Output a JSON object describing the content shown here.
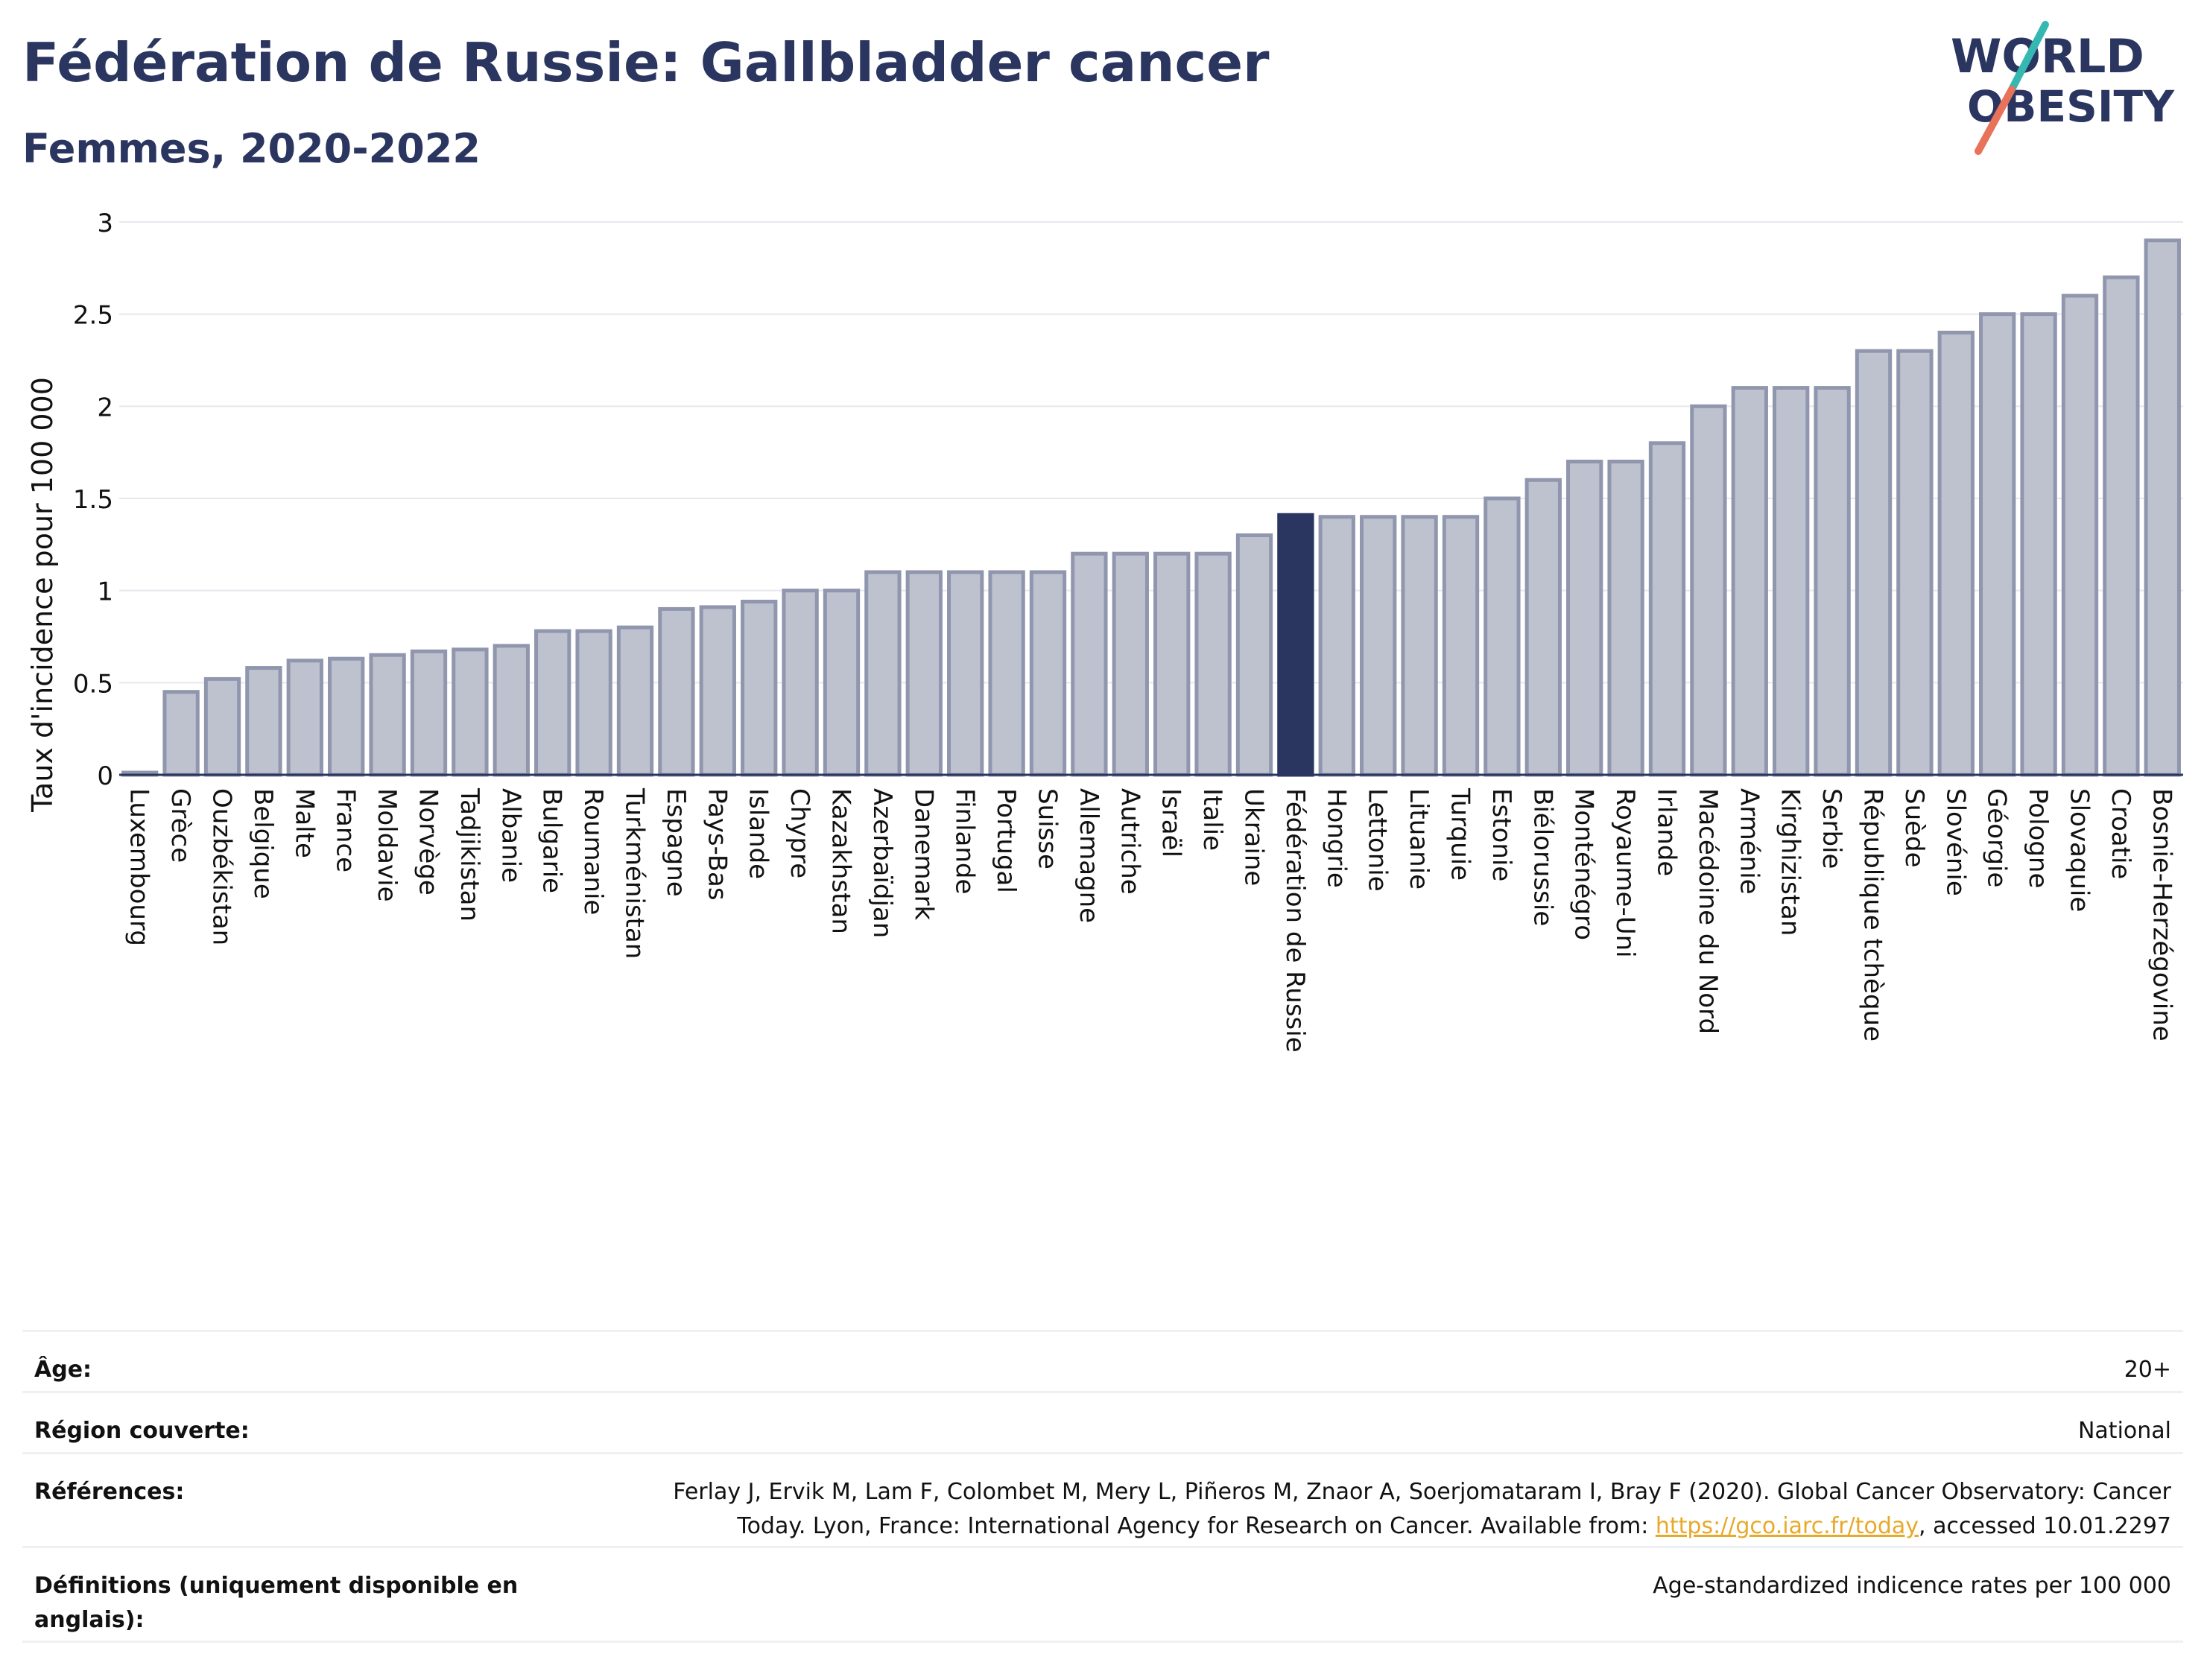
{
  "header": {
    "title": "Fédération de Russie: Gallbladder cancer",
    "subtitle": "Femmes, 2020-2022"
  },
  "logo": {
    "line1": "WORLD",
    "line2": "OBESITY",
    "slash_colors": [
      "#35b8b2",
      "#e8735a"
    ],
    "text_color": "#2a3560"
  },
  "colors": {
    "bar": "#bec2cf",
    "bar_outline": "#9096ad",
    "highlight": "#2a3560",
    "grid": "#e6e8ee",
    "baseline": "#2a3560"
  },
  "chart_data": {
    "type": "bar",
    "ylabel": "Taux d'incidence pour 100 000",
    "ylim": [
      0,
      3
    ],
    "yticks": [
      {
        "value": 0,
        "label": "0"
      },
      {
        "value": 0.5,
        "label": "0.5"
      },
      {
        "value": 1,
        "label": "1"
      },
      {
        "value": 1.5,
        "label": "1.5"
      },
      {
        "value": 2,
        "label": "2"
      },
      {
        "value": 2.5,
        "label": "2.5"
      },
      {
        "value": 3,
        "label": "3"
      }
    ],
    "grid": true,
    "highlight": "Fédération de Russie",
    "categories": [
      "Luxembourg",
      "Grèce",
      "Ouzbékistan",
      "Belgique",
      "Malte",
      "France",
      "Moldavie",
      "Norvège",
      "Tadjikistan",
      "Albanie",
      "Bulgarie",
      "Roumanie",
      "Turkménistan",
      "Espagne",
      "Pays-Bas",
      "Islande",
      "Chypre",
      "Kazakhstan",
      "Azerbaïdjan",
      "Danemark",
      "Finlande",
      "Portugal",
      "Suisse",
      "Allemagne",
      "Autriche",
      "Israël",
      "Italie",
      "Ukraine",
      "Fédération de Russie",
      "Hongrie",
      "Lettonie",
      "Lituanie",
      "Turquie",
      "Estonie",
      "Biélorussie",
      "Monténégro",
      "Royaume-Uni",
      "Irlande",
      "Macédoine du Nord",
      "Arménie",
      "Kirghizistan",
      "Serbie",
      "République tchèque",
      "Suède",
      "Slovénie",
      "Géorgie",
      "Pologne",
      "Slovaquie",
      "Croatie",
      "Bosnie-Herzégovine"
    ],
    "values": [
      0.01,
      0.45,
      0.52,
      0.58,
      0.62,
      0.63,
      0.65,
      0.67,
      0.68,
      0.7,
      0.78,
      0.78,
      0.8,
      0.9,
      0.91,
      0.94,
      1.0,
      1.0,
      1.1,
      1.1,
      1.1,
      1.1,
      1.1,
      1.2,
      1.2,
      1.2,
      1.2,
      1.3,
      1.41,
      1.4,
      1.4,
      1.4,
      1.4,
      1.5,
      1.6,
      1.7,
      1.7,
      1.8,
      2.0,
      2.1,
      2.1,
      2.1,
      2.3,
      2.3,
      2.4,
      2.5,
      2.5,
      2.6,
      2.7,
      2.9
    ]
  },
  "info": {
    "age_label": "Âge:",
    "age_value": "20+",
    "region_label": "Région couverte:",
    "region_value": "National",
    "references_label": "Références:",
    "references_text": "Ferlay J, Ervik M, Lam F, Colombet M, Mery L, Piñeros M, Znaor A, Soerjomataram I, Bray F (2020). Global Cancer Observatory: Cancer Today. Lyon, France: International Agency for Research on Cancer. Available from: ",
    "references_link": "https://gco.iarc.fr/today",
    "references_tail": ", accessed 10.01.2297",
    "definitions_label": "Définitions (uniquement disponible en anglais):",
    "definitions_value": "Age-standardized indicence rates per 100 000"
  }
}
